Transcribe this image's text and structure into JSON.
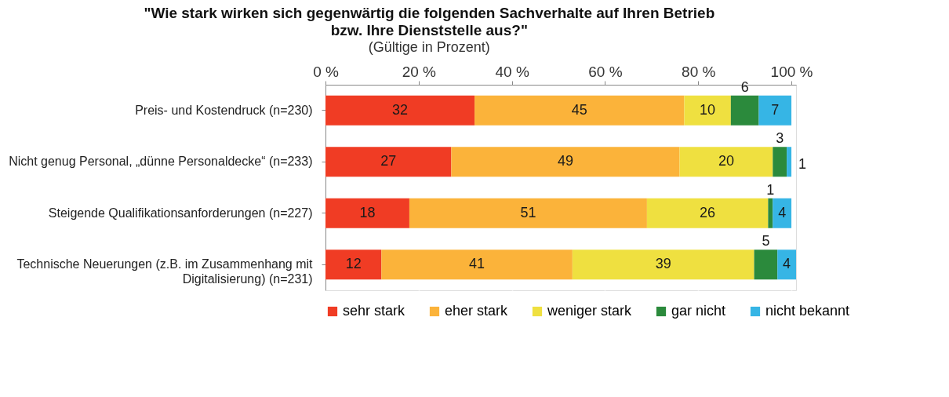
{
  "chart_data": {
    "type": "bar",
    "orientation": "horizontal",
    "stacked": true,
    "title": "\"Wie stark wirken sich gegenwärtig die folgenden Sachverhalte auf Ihren Betrieb bzw. Ihre Dienststelle aus?\"",
    "subtitle": "(Gültige in Prozent)",
    "categories": [
      "Preis- und Kostendruck (n=230)",
      "Nicht genug Personal, „dünne Personaldecke“ (n=233)",
      "Steigende Qualifikationsanforderungen (n=227)",
      "Technische Neuerungen (z.B. im Zusammenhang mit Digitalisierung) (n=231)"
    ],
    "series": [
      {
        "name": "sehr stark",
        "color": "#f03c24",
        "values": [
          32,
          27,
          18,
          12
        ]
      },
      {
        "name": "eher stark",
        "color": "#fbb33a",
        "values": [
          45,
          49,
          51,
          41
        ]
      },
      {
        "name": "weniger stark",
        "color": "#efe040",
        "values": [
          10,
          20,
          26,
          39
        ]
      },
      {
        "name": "gar nicht",
        "color": "#2b8a3c",
        "values": [
          6,
          3,
          1,
          5
        ]
      },
      {
        "name": "nicht bekannt",
        "color": "#36b5e5",
        "values": [
          7,
          1,
          4,
          4
        ]
      }
    ],
    "xlim": [
      0,
      101
    ],
    "xticks": [
      {
        "value": 0,
        "label": "0 %"
      },
      {
        "value": 20,
        "label": "20 %"
      },
      {
        "value": 40,
        "label": "40 %"
      },
      {
        "value": 60,
        "label": "60 %"
      },
      {
        "value": 80,
        "label": "80 %"
      },
      {
        "value": 100,
        "label": "100 %"
      }
    ],
    "grid": "x",
    "legend": "bottom",
    "data_labels": true
  }
}
